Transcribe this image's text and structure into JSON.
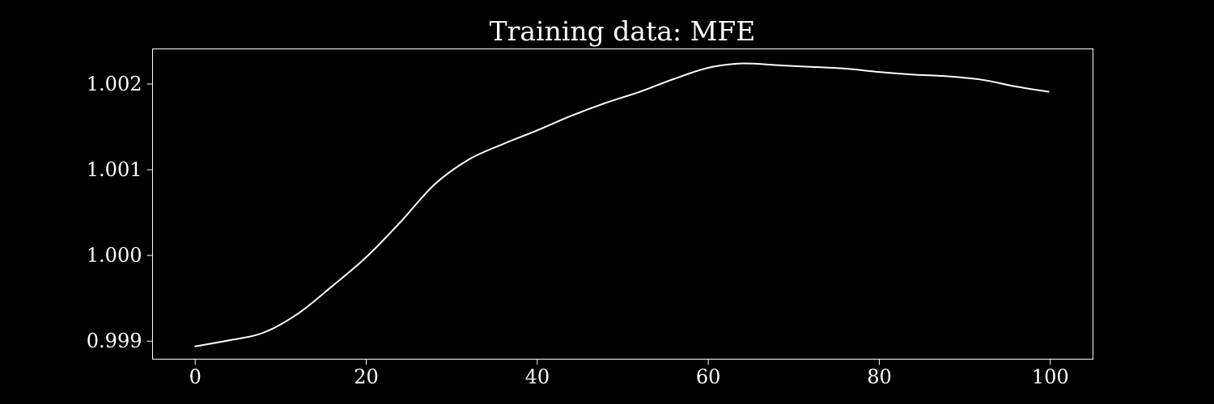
{
  "chart_data": {
    "type": "line",
    "title": "Training data: MFE",
    "xlabel": "",
    "ylabel": "",
    "xlim": [
      -4.99,
      104.99
    ],
    "ylim": [
      0.99879,
      1.00241
    ],
    "x_ticks": [
      0,
      20,
      40,
      60,
      80,
      100
    ],
    "x_tick_labels": [
      "0",
      "20",
      "40",
      "60",
      "80",
      "100"
    ],
    "y_ticks": [
      0.999,
      1.0,
      1.001,
      1.002
    ],
    "y_tick_labels": [
      "0.999",
      "1.000",
      "1.001",
      "1.002"
    ],
    "grid": false,
    "legend": "none",
    "colors": {
      "background": "#000000",
      "axes": "#ffffff",
      "line": "#ffffff",
      "text": "#ffffff"
    },
    "series": [
      {
        "x": [
          0,
          4,
          8,
          12,
          16,
          20,
          24,
          28,
          32,
          36,
          40,
          44,
          48,
          52,
          56,
          60,
          64,
          68,
          72,
          76,
          80,
          84,
          88,
          92,
          96,
          99.8
        ],
        "values": [
          0.99894,
          0.99901,
          0.9991,
          0.99932,
          0.99964,
          0.99998,
          1.00039,
          1.00083,
          1.00112,
          1.0013,
          1.00146,
          1.00163,
          1.00178,
          1.00191,
          1.00206,
          1.00219,
          1.00224,
          1.00222,
          1.0022,
          1.00218,
          1.00214,
          1.00211,
          1.00209,
          1.00205,
          1.00197,
          1.00191
        ]
      }
    ]
  }
}
